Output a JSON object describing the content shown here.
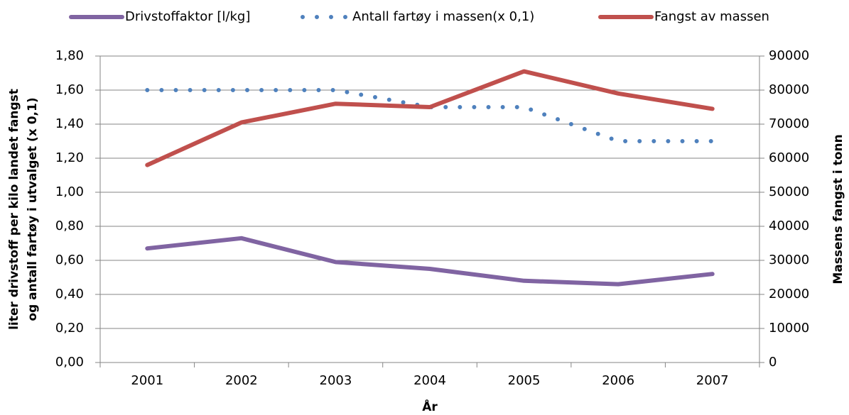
{
  "chart_data": {
    "type": "line",
    "categories": [
      "2001",
      "2002",
      "2003",
      "2004",
      "2005",
      "2006",
      "2007"
    ],
    "series": [
      {
        "name": "Drivstoffaktor [l/kg]",
        "color": "#8064a2",
        "style": "solid",
        "values": [
          0.67,
          0.73,
          0.59,
          0.55,
          0.48,
          0.46,
          0.52
        ]
      },
      {
        "name": "Antall fartøy i massen(x 0,1)",
        "color": "#4f81bd",
        "style": "dotted",
        "values": [
          1.6,
          1.6,
          1.6,
          1.5,
          1.5,
          1.3,
          1.3
        ]
      },
      {
        "name": "Fangst av massen",
        "color": "#c0504d",
        "style": "solid",
        "axis": "y2",
        "values": [
          58000,
          70500,
          76000,
          75000,
          85500,
          79000,
          74500
        ]
      }
    ],
    "ylim": [
      0,
      1.8
    ],
    "yticks": [
      {
        "value": 0,
        "label": "0,00"
      },
      {
        "value": 0.2,
        "label": "0,20"
      },
      {
        "value": 0.4,
        "label": "0,40"
      },
      {
        "value": 0.6,
        "label": "0,60"
      },
      {
        "value": 0.8,
        "label": "0,80"
      },
      {
        "value": 1.0,
        "label": "1,00"
      },
      {
        "value": 1.2,
        "label": "1,20"
      },
      {
        "value": 1.4,
        "label": "1,40"
      },
      {
        "value": 1.6,
        "label": "1,60"
      },
      {
        "value": 1.8,
        "label": "1,80"
      }
    ],
    "y2lim": [
      0,
      90000
    ],
    "y2ticks": [
      0,
      10000,
      20000,
      30000,
      40000,
      50000,
      60000,
      70000,
      80000,
      90000
    ],
    "ylabel": [
      "liter drivstoff per kilo landet fangst",
      "og antall fartøy i utvalget (x 0,1)"
    ],
    "y2label": "Massens fangst i tonn",
    "xlabel": "År",
    "grid": true,
    "legend": "top"
  }
}
